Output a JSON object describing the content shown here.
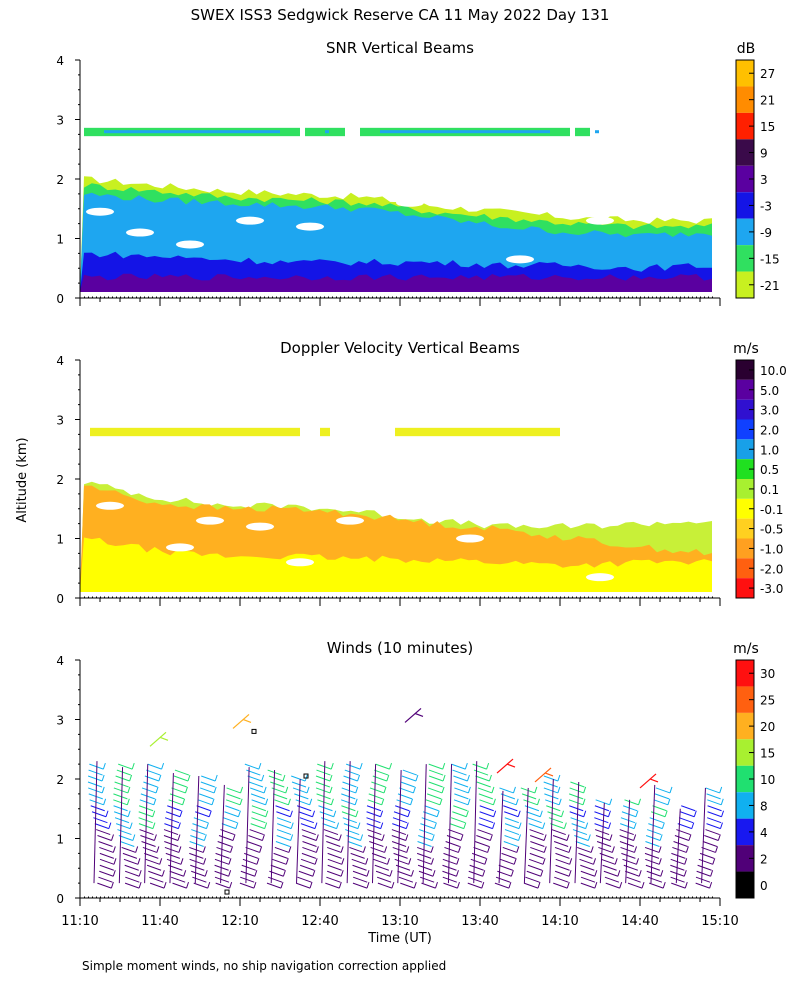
{
  "page": {
    "title": "SWEX ISS3 Sedgwick Reserve CA  11 May 2022 Day 131",
    "y_axis_label": "Altitude (km)",
    "x_axis_label": "Time (UT)",
    "footnote": "Simple moment winds, no ship navigation correction applied"
  },
  "chart_data": [
    {
      "type": "heatmap",
      "title": "SNR Vertical Beams",
      "xlabel": "Time (UT)",
      "ylabel": "Altitude (km)",
      "xlim_hours": [
        11.1667,
        15.1667
      ],
      "ylim": [
        0,
        4
      ],
      "yticks": [
        "0",
        "1",
        "2",
        "3",
        "4"
      ],
      "colorbar_unit": "dB",
      "colorbar_labels": [
        "27",
        "21",
        "15",
        "9",
        "3",
        "-3",
        "-9",
        "-15",
        "-21"
      ],
      "colorbar_colors": [
        "#ffc000",
        "#ff8c00",
        "#ff2000",
        "#3a0a4a",
        "#5a00a0",
        "#1414e6",
        "#1ea6f0",
        "#30e060",
        "#c8f020"
      ],
      "layers": [
        {
          "label": "-21",
          "color": "#c8f020",
          "top_km": [
            2.0,
            1.9,
            1.8,
            1.75,
            1.7,
            1.55,
            1.45,
            1.35,
            1.3,
            1.3
          ]
        },
        {
          "label": "-15",
          "color": "#30e060",
          "top_km": [
            1.9,
            1.8,
            1.7,
            1.65,
            1.6,
            1.45,
            1.35,
            1.25,
            1.2,
            1.2
          ]
        },
        {
          "label": "-9",
          "color": "#1ea6f0",
          "top_km": [
            1.75,
            1.65,
            1.6,
            1.55,
            1.5,
            1.35,
            1.2,
            1.1,
            1.05,
            1.1
          ]
        },
        {
          "label": "-3",
          "color": "#1414e6",
          "top_km": [
            0.75,
            0.7,
            0.65,
            0.6,
            0.6,
            0.6,
            0.55,
            0.55,
            0.5,
            0.55
          ]
        },
        {
          "label": "3",
          "color": "#5a00a0",
          "top_km": [
            0.35,
            0.35,
            0.35,
            0.35,
            0.35,
            0.35,
            0.35,
            0.35,
            0.35,
            0.35
          ]
        }
      ],
      "band_km": [
        2.72,
        2.86
      ]
    },
    {
      "type": "heatmap",
      "title": "Doppler Velocity Vertical Beams",
      "xlabel": "Time (UT)",
      "ylabel": "Altitude (km)",
      "xlim_hours": [
        11.1667,
        15.1667
      ],
      "ylim": [
        0,
        4
      ],
      "yticks": [
        "0",
        "1",
        "2",
        "3",
        "4"
      ],
      "colorbar_unit": "m/s",
      "colorbar_labels": [
        "10.0",
        "5.0",
        "3.0",
        "2.0",
        "1.0",
        "0.5",
        "0.1",
        "-0.1",
        "-0.5",
        "-1.0",
        "-2.0",
        "-3.0"
      ],
      "colorbar_colors": [
        "#2a0030",
        "#5a00a0",
        "#3010d0",
        "#1040ff",
        "#18a0e8",
        "#20e020",
        "#a8f030",
        "#ffff00",
        "#ffd020",
        "#ffa020",
        "#ff6010",
        "#ff1010"
      ],
      "layers": [
        {
          "label": "0.1",
          "color": "#c8f038",
          "top_km": [
            1.95,
            1.7,
            1.55,
            1.55,
            1.45,
            1.3,
            1.2,
            1.2,
            1.25,
            1.3
          ]
        },
        {
          "label": "-0.5",
          "color": "#ffb020",
          "top_km": [
            1.9,
            1.6,
            1.5,
            1.5,
            1.4,
            1.25,
            1.15,
            1.0,
            0.85,
            0.75
          ]
        },
        {
          "label": "-0.1",
          "color": "#ffff00",
          "top_km": [
            1.0,
            0.8,
            0.7,
            0.7,
            0.65,
            0.65,
            0.6,
            0.55,
            0.6,
            0.6
          ]
        }
      ],
      "band_km": [
        2.72,
        2.86
      ]
    },
    {
      "type": "wind_barbs",
      "title": "Winds (10 minutes)",
      "xlabel": "Time (UT)",
      "ylabel": "Altitude (km)",
      "xlim_hours": [
        11.1667,
        15.1667
      ],
      "ylim": [
        0,
        4
      ],
      "yticks": [
        "0",
        "1",
        "2",
        "3",
        "4"
      ],
      "xticks": [
        "11:10",
        "11:40",
        "12:10",
        "12:40",
        "13:10",
        "13:40",
        "14:10",
        "14:40",
        "15:10"
      ],
      "colorbar_unit": "m/s",
      "colorbar_labels": [
        "30",
        "25",
        "20",
        "15",
        "10",
        "8",
        "4",
        "2",
        "0"
      ],
      "colorbar_colors": [
        "#ff1010",
        "#ff6010",
        "#ffb020",
        "#a8f030",
        "#20e070",
        "#10b0f0",
        "#1818f0",
        "#500078",
        "#000000"
      ],
      "profile_tops_km": [
        2.3,
        2.2,
        2.25,
        2.1,
        2.05,
        1.9,
        2.2,
        2.15,
        2.0,
        2.3,
        2.3,
        2.25,
        2.15,
        2.25,
        2.25,
        2.3,
        1.8,
        1.85,
        2.0,
        1.95,
        1.6,
        1.65,
        1.9,
        1.5,
        1.85
      ]
    }
  ]
}
